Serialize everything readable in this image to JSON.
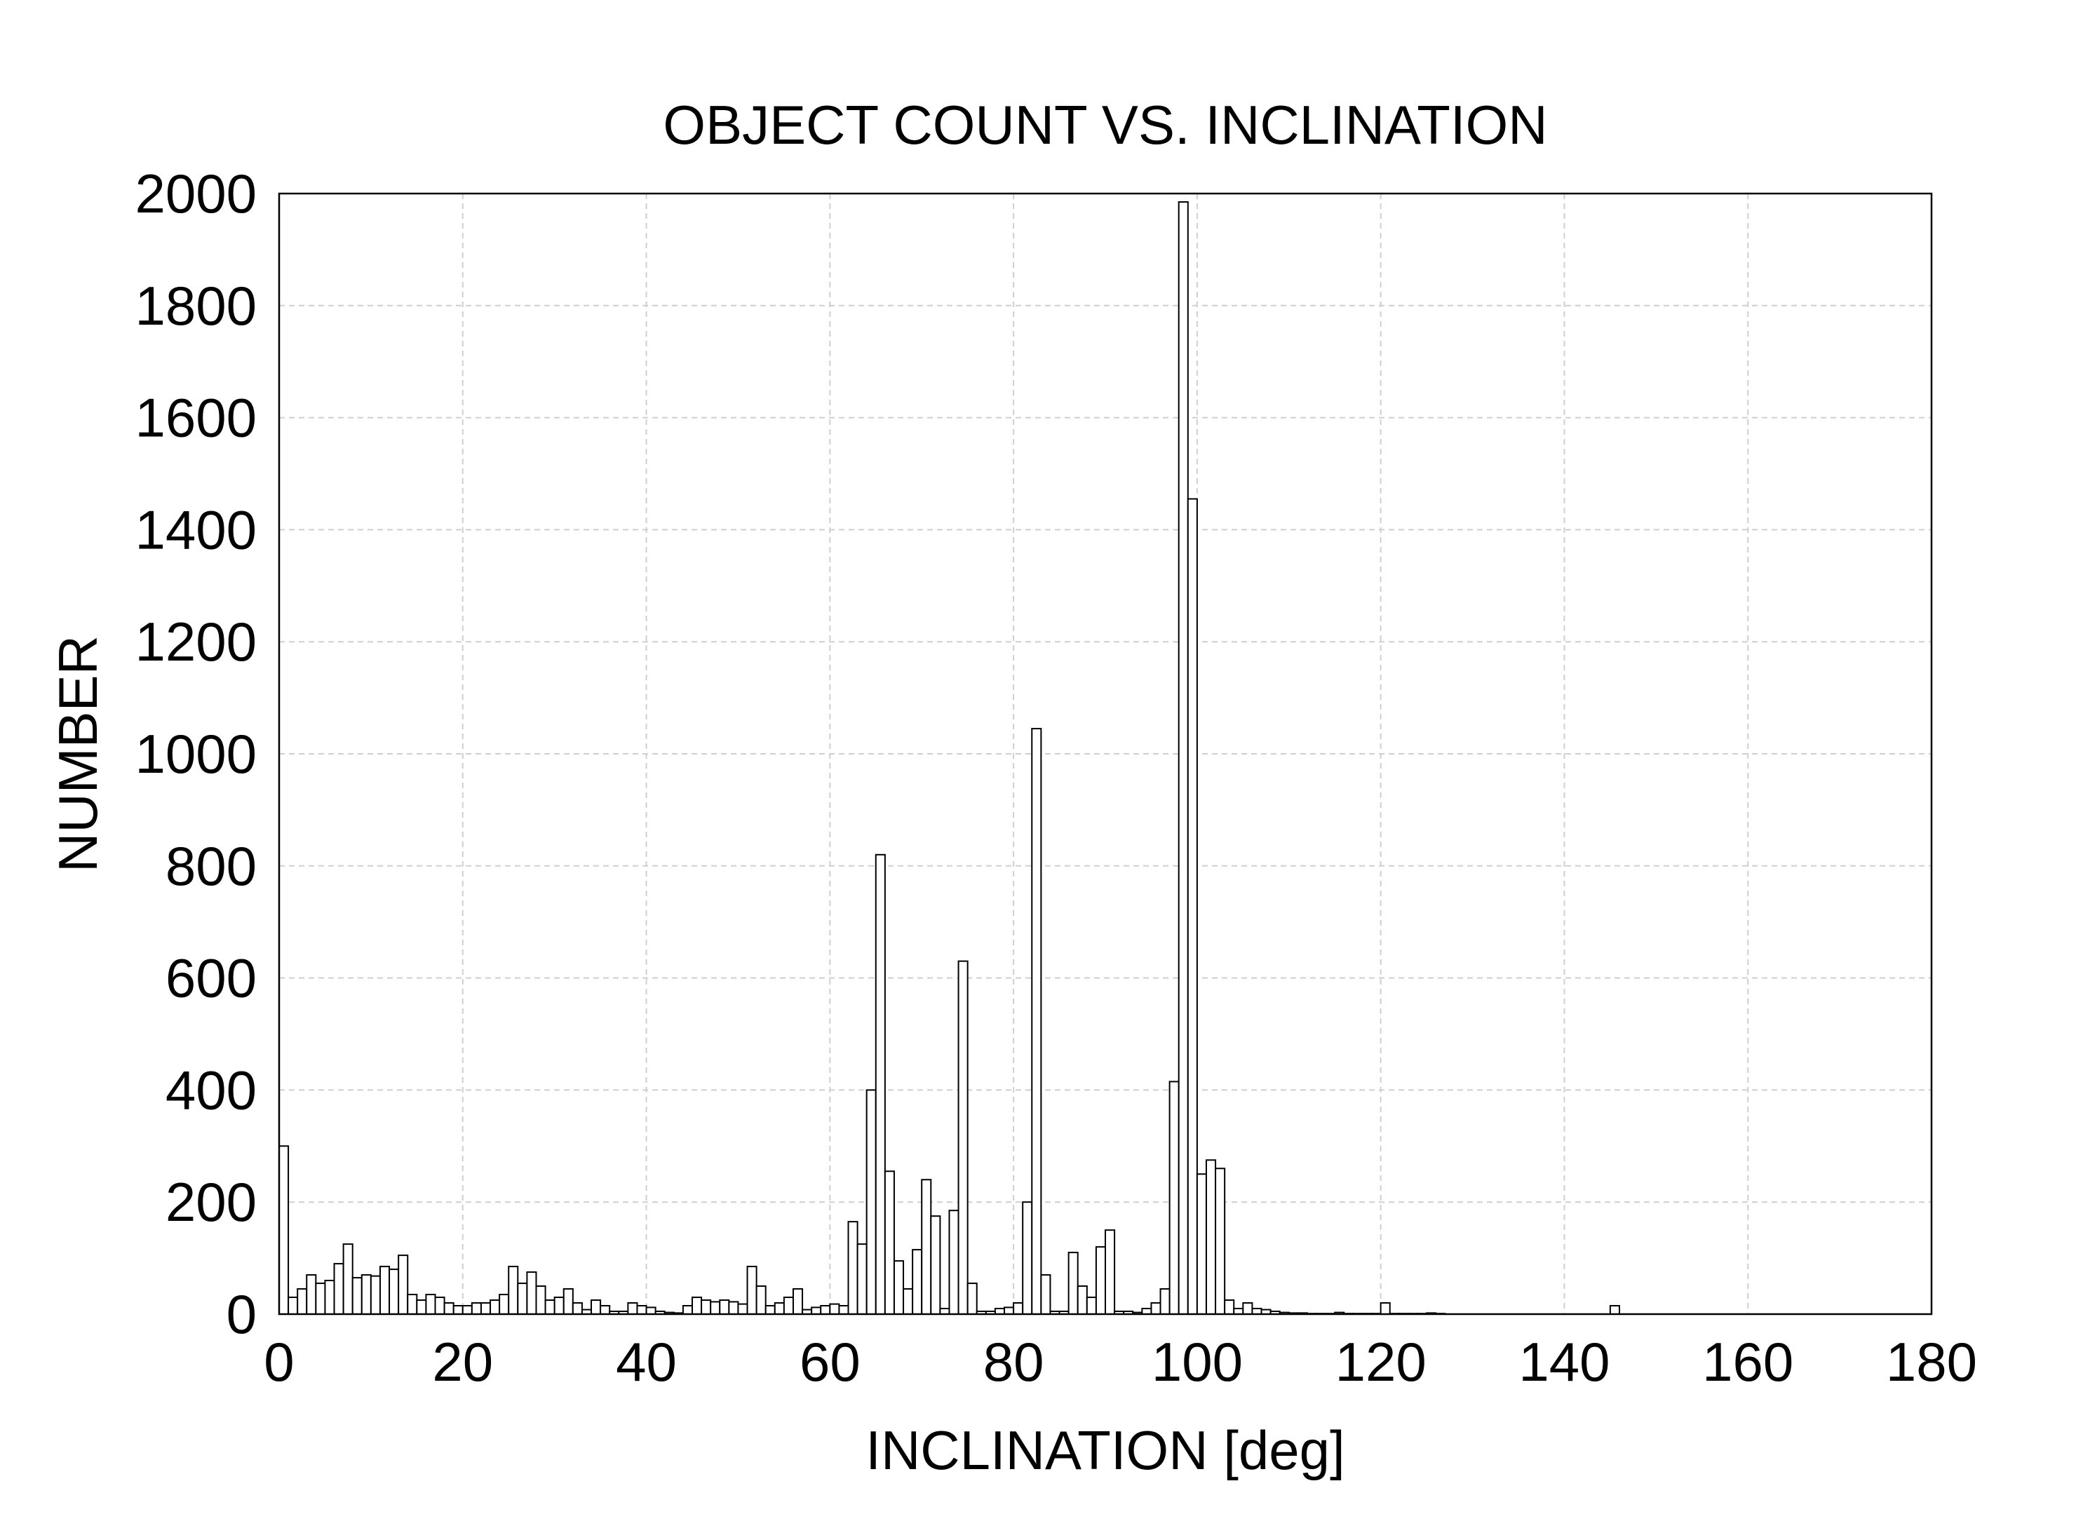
{
  "chart_data": {
    "type": "bar",
    "title": "OBJECT COUNT VS. INCLINATION",
    "xlabel": "INCLINATION [deg]",
    "ylabel": "NUMBER",
    "xlim": [
      0,
      180
    ],
    "ylim": [
      0,
      2000
    ],
    "xticks": [
      "0",
      "20",
      "40",
      "60",
      "80",
      "100",
      "120",
      "140",
      "160",
      "180"
    ],
    "yticks": [
      "0",
      "200",
      "400",
      "600",
      "800",
      "1000",
      "1200",
      "1400",
      "1600",
      "1800",
      "2000"
    ],
    "grid": true,
    "bin_width": 1,
    "series": [
      {
        "bin_start": [
          0,
          1,
          2,
          3,
          4,
          5,
          6,
          7,
          8,
          9,
          10,
          11,
          12,
          13,
          14,
          15,
          16,
          17,
          18,
          19,
          20,
          21,
          22,
          23,
          24,
          25,
          26,
          27,
          28,
          29,
          30,
          31,
          32,
          33,
          34,
          35,
          36,
          37,
          38,
          39,
          40,
          41,
          42,
          43,
          44,
          45,
          46,
          47,
          48,
          49,
          50,
          51,
          52,
          53,
          54,
          55,
          56,
          57,
          58,
          59,
          60,
          61,
          62,
          63,
          64,
          65,
          66,
          67,
          68,
          69,
          70,
          71,
          72,
          73,
          74,
          75,
          76,
          77,
          78,
          79,
          80,
          81,
          82,
          83,
          84,
          85,
          86,
          87,
          88,
          89,
          90,
          91,
          92,
          93,
          94,
          95,
          96,
          97,
          98,
          99,
          100,
          101,
          102,
          103,
          104,
          105,
          106,
          107,
          108,
          109,
          110,
          111,
          112,
          113,
          114,
          115,
          116,
          117,
          118,
          119,
          120,
          121,
          122,
          123,
          124,
          125,
          126,
          127,
          128,
          129,
          130,
          131,
          132,
          133,
          134,
          135,
          136,
          137,
          138,
          139,
          140,
          141,
          142,
          143,
          144,
          145,
          146,
          147,
          148,
          149,
          150,
          151,
          152,
          153,
          154,
          155,
          156,
          157,
          158,
          159,
          160,
          161,
          162,
          163,
          164,
          165,
          166,
          167,
          168,
          169,
          170,
          171,
          172,
          173,
          174,
          175,
          176,
          177,
          178,
          179
        ],
        "values": [
          300,
          30,
          45,
          70,
          55,
          60,
          90,
          125,
          65,
          70,
          68,
          85,
          80,
          105,
          35,
          25,
          35,
          30,
          20,
          15,
          15,
          20,
          20,
          25,
          35,
          85,
          55,
          75,
          50,
          25,
          30,
          45,
          20,
          8,
          25,
          15,
          5,
          5,
          20,
          15,
          12,
          5,
          3,
          2,
          15,
          30,
          25,
          22,
          25,
          22,
          18,
          85,
          50,
          15,
          20,
          30,
          45,
          8,
          12,
          15,
          18,
          15,
          165,
          125,
          400,
          820,
          255,
          95,
          45,
          115,
          240,
          175,
          10,
          185,
          630,
          55,
          5,
          5,
          10,
          12,
          20,
          200,
          1045,
          70,
          5,
          5,
          110,
          50,
          30,
          120,
          150,
          5,
          5,
          3,
          10,
          20,
          45,
          415,
          1985,
          1455,
          250,
          275,
          260,
          25,
          10,
          20,
          10,
          8,
          5,
          3,
          2,
          2,
          1,
          1,
          1,
          3,
          1,
          1,
          1,
          1,
          20,
          1,
          1,
          1,
          1,
          2,
          1,
          0,
          0,
          0,
          0,
          0,
          0,
          0,
          0,
          0,
          0,
          0,
          0,
          0,
          0,
          0,
          0,
          0,
          0,
          15,
          0,
          0,
          0,
          0,
          0,
          0,
          0,
          0,
          0,
          0,
          0,
          0,
          0,
          0,
          0,
          0,
          0,
          0,
          0,
          0,
          0,
          0,
          0,
          0,
          0,
          0,
          0,
          0,
          0,
          0,
          0,
          0,
          0,
          0,
          0,
          0
        ]
      }
    ]
  }
}
